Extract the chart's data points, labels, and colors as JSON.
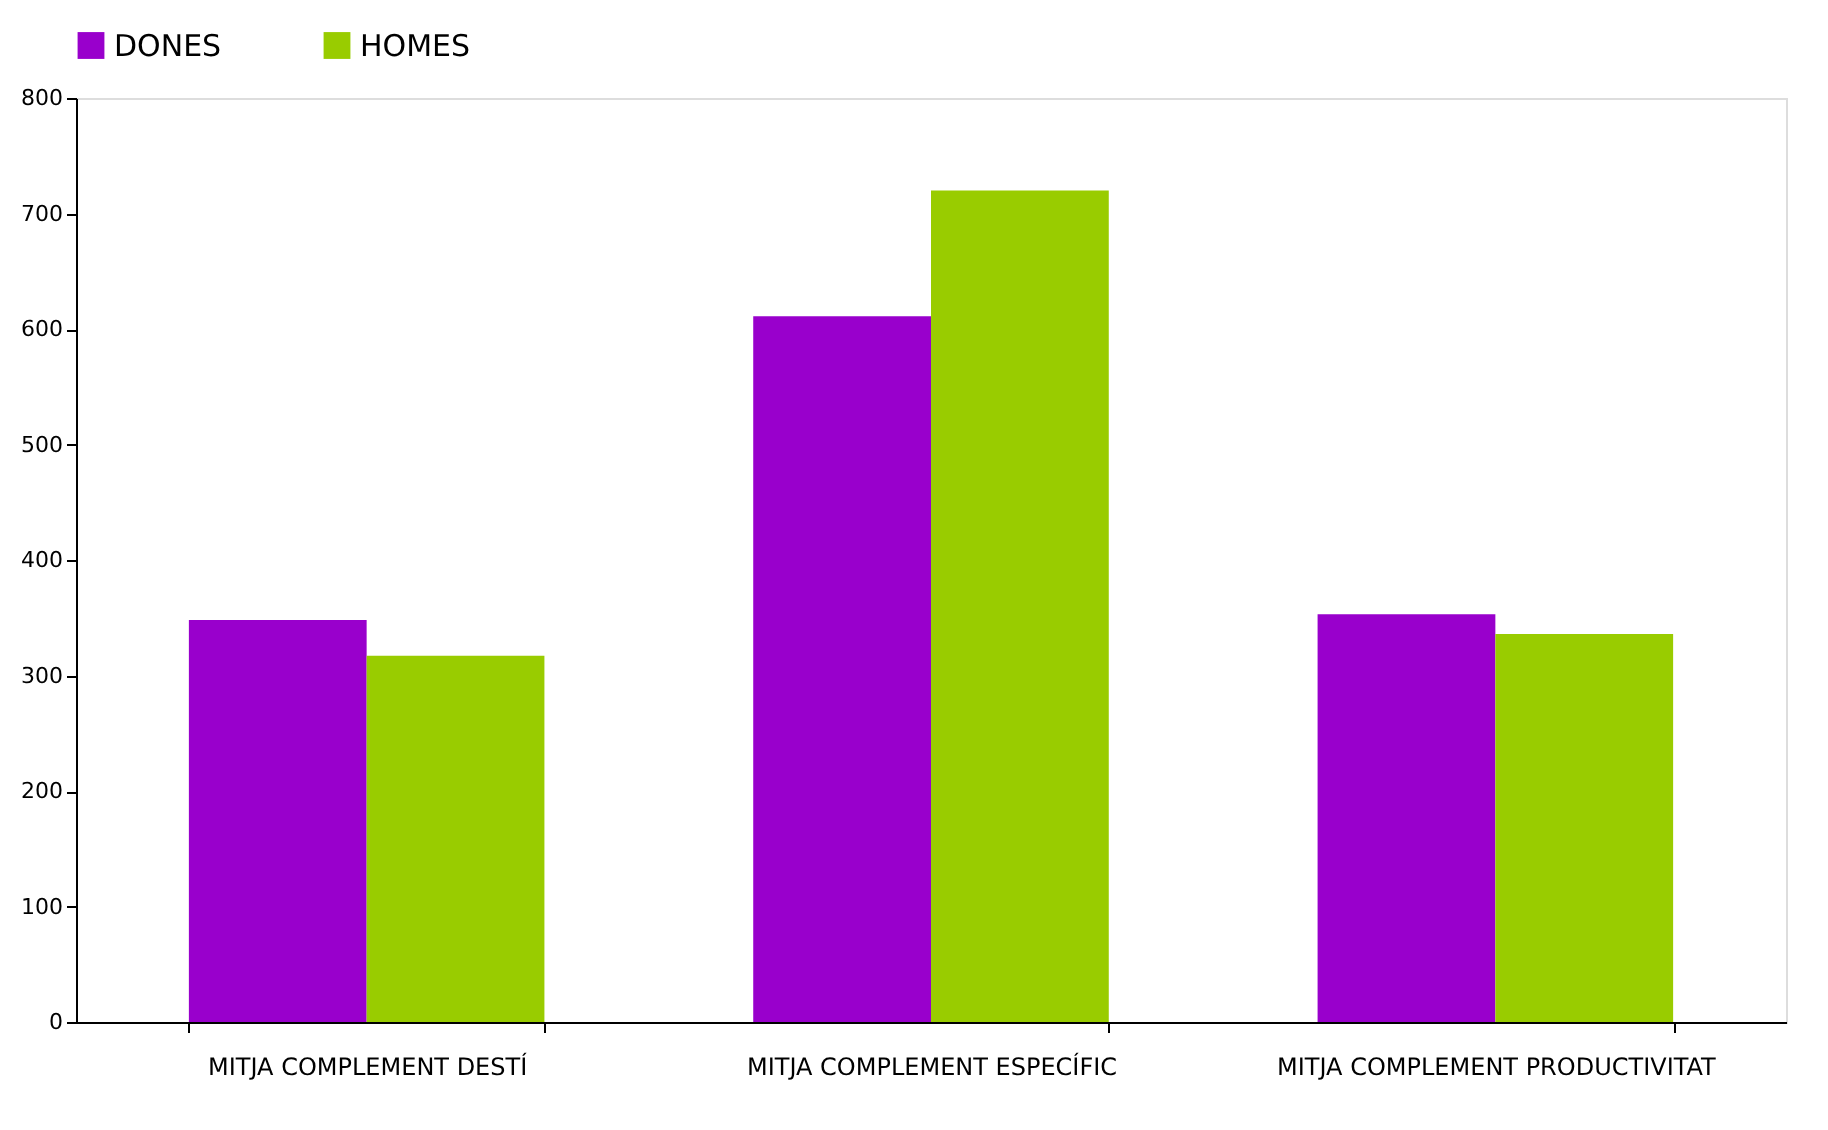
{
  "chart_data": {
    "type": "bar",
    "categories": [
      "MITJA COMPLEMENT DESTÍ",
      "MITJA COMPLEMENT ESPECÍFIC",
      "MITJA COMPLEMENT PRODUCTIVITAT"
    ],
    "series": [
      {
        "name": "DONES",
        "color": "#9900cc",
        "values": [
          348,
          611,
          353
        ]
      },
      {
        "name": "HOMES",
        "color": "#99cc00",
        "values": [
          317,
          720,
          336
        ]
      }
    ],
    "ylim": [
      0,
      800
    ],
    "yticks": [
      0,
      100,
      200,
      300,
      400,
      500,
      600,
      700,
      800
    ],
    "grid": false,
    "legend": "top"
  }
}
